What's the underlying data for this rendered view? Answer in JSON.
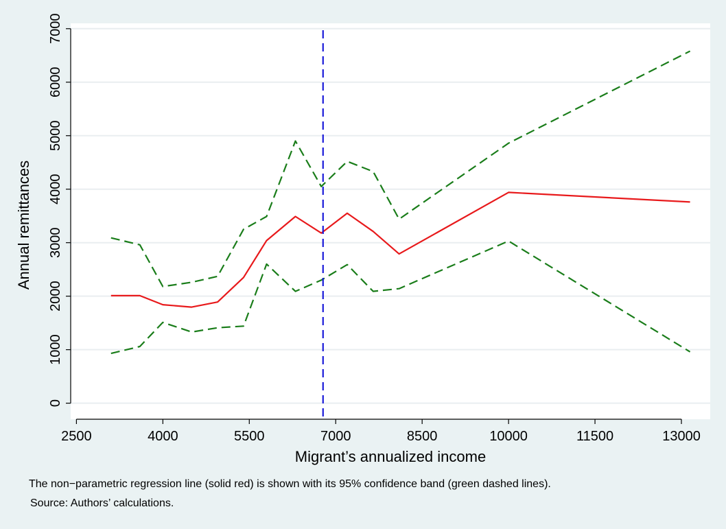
{
  "chart_data": {
    "type": "line",
    "title": "",
    "xlabel": "Migrant’s annualized income",
    "ylabel": "Annual remittances",
    "xlim": [
      2400,
      13500
    ],
    "ylim": [
      -300,
      7100
    ],
    "xticks": [
      2500,
      4000,
      5500,
      7000,
      8500,
      10000,
      11500,
      13000
    ],
    "yticks": [
      0,
      1000,
      2000,
      3000,
      4000,
      5000,
      6000,
      7000
    ],
    "grid": "horizontal",
    "legend": "none",
    "series": [
      {
        "style": "solid",
        "color": "#e8191b",
        "x": [
          3100,
          3600,
          4000,
          4500,
          4950,
          5400,
          5800,
          6300,
          6750,
          7200,
          7650,
          8100,
          10000,
          13150
        ],
        "y": [
          2010,
          2010,
          1840,
          1795,
          1890,
          2350,
          3040,
          3490,
          3180,
          3550,
          3210,
          2790,
          3940,
          3760
        ]
      },
      {
        "style": "dashed",
        "color": "#1a7d1a",
        "x": [
          3100,
          3600,
          4000,
          4500,
          4950,
          5400,
          5800,
          6300,
          6750,
          7200,
          7650,
          8100,
          10000,
          13150
        ],
        "y": [
          3090,
          2960,
          2180,
          2260,
          2370,
          3250,
          3490,
          4900,
          4050,
          4520,
          4330,
          3440,
          4860,
          6580
        ]
      },
      {
        "style": "dashed",
        "color": "#1a7d1a",
        "x": [
          3100,
          3600,
          4000,
          4500,
          4950,
          5400,
          5800,
          6300,
          6750,
          7200,
          7650,
          8100,
          10000,
          13150
        ],
        "y": [
          930,
          1060,
          1510,
          1330,
          1410,
          1440,
          2600,
          2090,
          2300,
          2590,
          2090,
          2140,
          3030,
          960
        ]
      }
    ],
    "reference_lines": [
      {
        "orientation": "vertical",
        "x": 6780,
        "style": "dashed",
        "color": "#1a1ad9"
      }
    ]
  },
  "notes": {
    "line1": "The non−parametric regression line (solid red) is shown with its 95% confidence band (green dashed lines).",
    "line2": "Source: Authors’ calculations."
  },
  "colors": {
    "background": "#eaf2f3",
    "plot_area": "#ffffff",
    "grid": "#e9eef0"
  }
}
